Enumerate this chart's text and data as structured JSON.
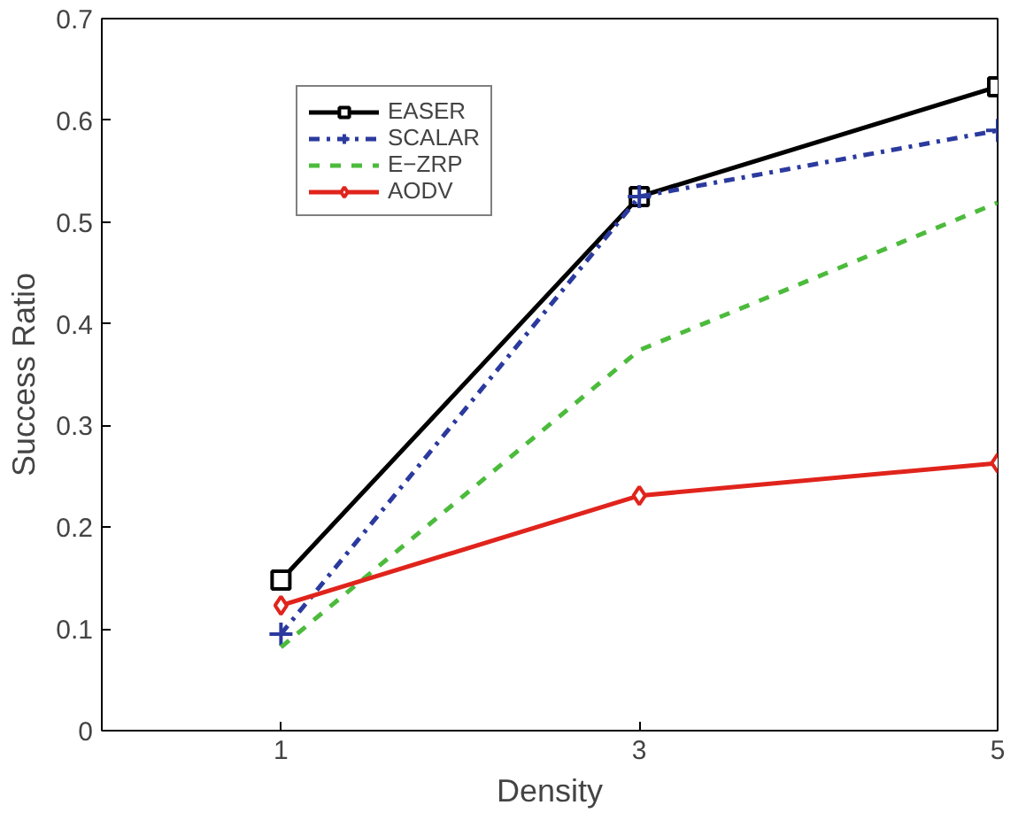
{
  "chart_data": {
    "type": "line",
    "xlabel": "Density",
    "ylabel": "Success Ratio",
    "x": [
      1,
      3,
      5
    ],
    "series": [
      {
        "name": "EASER",
        "color": "#000000",
        "values": [
          0.148,
          0.525,
          0.633
        ],
        "marker": "square",
        "line_style": "solid"
      },
      {
        "name": "SCALAR",
        "color": "#2b3a9e",
        "values": [
          0.095,
          0.525,
          0.59
        ],
        "marker": "cross",
        "line_style": "dashdot"
      },
      {
        "name": "E−ZRP",
        "color": "#4cbb3c",
        "values": [
          0.082,
          0.374,
          0.519
        ],
        "marker": "none",
        "line_style": "dashed"
      },
      {
        "name": "AODV",
        "color": "#e0241c",
        "values": [
          0.123,
          0.231,
          0.263
        ],
        "marker": "diamond",
        "line_style": "solid"
      }
    ],
    "xlim": [
      0,
      5
    ],
    "ylim": [
      0,
      0.7
    ],
    "xticks": [
      1,
      3,
      5
    ],
    "yticks": [
      0,
      0.1,
      0.2,
      0.3,
      0.4,
      0.5,
      0.6,
      0.7
    ],
    "grid": false,
    "legend": "top left"
  }
}
